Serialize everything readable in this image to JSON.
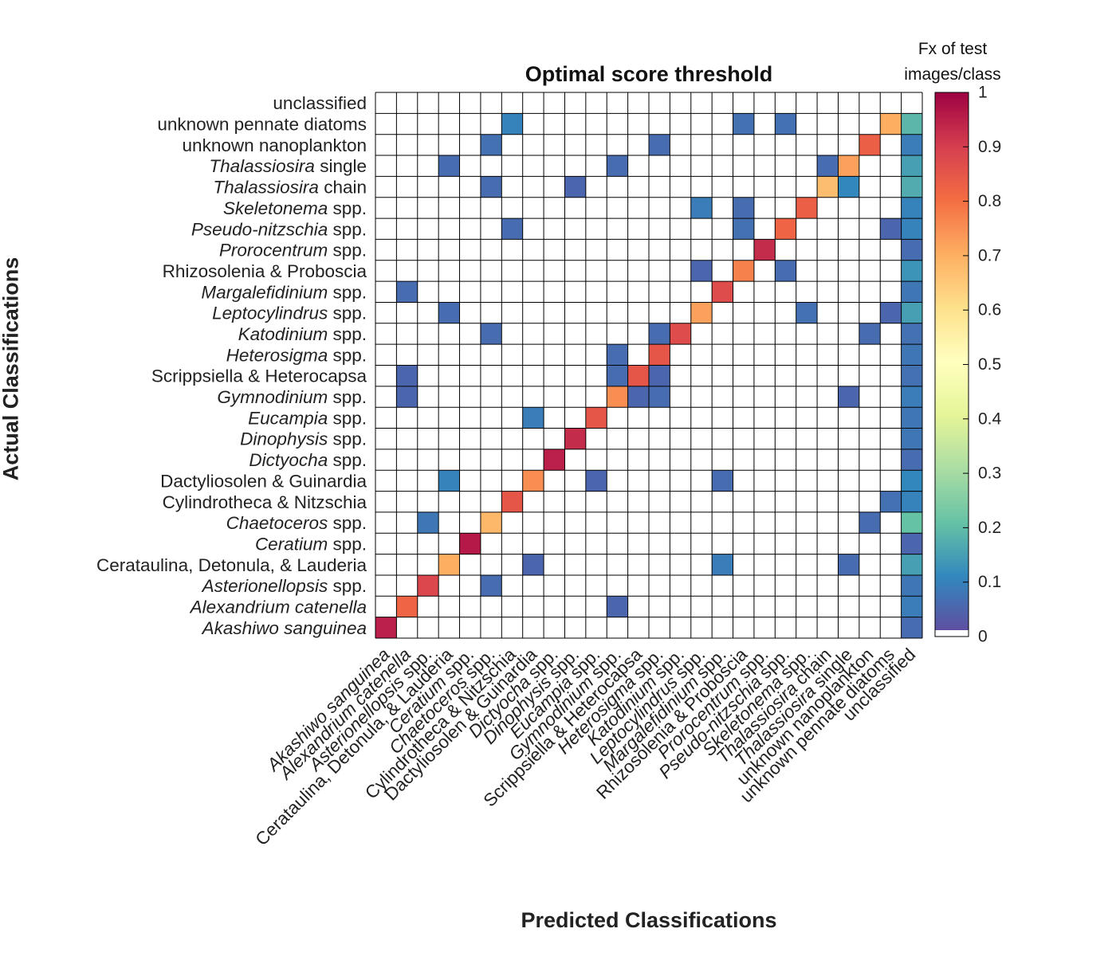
{
  "chart_data": {
    "type": "heatmap",
    "title": "Optimal score threshold",
    "xlabel": "Predicted Classifications",
    "ylabel": "Actual Classifications",
    "colorbar": {
      "title_line1": "Fx of test",
      "title_line2": "images/class",
      "ticks": [
        "0",
        "0.1",
        "0.2",
        "0.3",
        "0.4",
        "0.5",
        "0.6",
        "0.7",
        "0.8",
        "0.9",
        "1"
      ],
      "range": [
        0,
        1
      ],
      "colormap": "spectral (reversed): purple-blue-teal-green-yellow-orange-red; 0 drawn white"
    },
    "classes": [
      {
        "parts": [
          {
            "t": "Akashiwo sanguinea",
            "i": true
          }
        ]
      },
      {
        "parts": [
          {
            "t": "Alexandrium catenella",
            "i": true
          }
        ]
      },
      {
        "parts": [
          {
            "t": "Asterionellopsis",
            "i": true
          },
          {
            "t": " spp.",
            "i": false
          }
        ]
      },
      {
        "parts": [
          {
            "t": "Cerataulina, Detonula, & Lauderia",
            "i": false
          }
        ]
      },
      {
        "parts": [
          {
            "t": "Ceratium",
            "i": true
          },
          {
            "t": " spp.",
            "i": false
          }
        ]
      },
      {
        "parts": [
          {
            "t": "Chaetoceros",
            "i": true
          },
          {
            "t": " spp.",
            "i": false
          }
        ]
      },
      {
        "parts": [
          {
            "t": "Cylindrotheca & Nitzschia",
            "i": false
          }
        ]
      },
      {
        "parts": [
          {
            "t": "Dactyliosolen & Guinardia",
            "i": false
          }
        ]
      },
      {
        "parts": [
          {
            "t": "Dictyocha",
            "i": true
          },
          {
            "t": " spp.",
            "i": false
          }
        ]
      },
      {
        "parts": [
          {
            "t": "Dinophysis",
            "i": true
          },
          {
            "t": " spp.",
            "i": false
          }
        ]
      },
      {
        "parts": [
          {
            "t": "Eucampia",
            "i": true
          },
          {
            "t": " spp.",
            "i": false
          }
        ]
      },
      {
        "parts": [
          {
            "t": "Gymnodinium",
            "i": true
          },
          {
            "t": " spp.",
            "i": false
          }
        ]
      },
      {
        "parts": [
          {
            "t": "Scrippsiella & Heterocapsa",
            "i": false
          }
        ]
      },
      {
        "parts": [
          {
            "t": "Heterosigma",
            "i": true
          },
          {
            "t": " spp.",
            "i": false
          }
        ]
      },
      {
        "parts": [
          {
            "t": "Katodinium",
            "i": true
          },
          {
            "t": " spp.",
            "i": false
          }
        ]
      },
      {
        "parts": [
          {
            "t": "Leptocylindrus",
            "i": true
          },
          {
            "t": " spp.",
            "i": false
          }
        ]
      },
      {
        "parts": [
          {
            "t": "Margalefidinium",
            "i": true
          },
          {
            "t": " spp.",
            "i": false
          }
        ]
      },
      {
        "parts": [
          {
            "t": "Rhizosolenia & Proboscia",
            "i": false
          }
        ]
      },
      {
        "parts": [
          {
            "t": "Prorocentrum",
            "i": true
          },
          {
            "t": " spp.",
            "i": false
          }
        ]
      },
      {
        "parts": [
          {
            "t": "Pseudo-nitzschia",
            "i": true
          },
          {
            "t": " spp.",
            "i": false
          }
        ]
      },
      {
        "parts": [
          {
            "t": "Skeletonema",
            "i": true
          },
          {
            "t": " spp.",
            "i": false
          }
        ]
      },
      {
        "parts": [
          {
            "t": "Thalassiosira",
            "i": true
          },
          {
            "t": " chain",
            "i": false
          }
        ]
      },
      {
        "parts": [
          {
            "t": "Thalassiosira",
            "i": true
          },
          {
            "t": " single",
            "i": false
          }
        ]
      },
      {
        "parts": [
          {
            "t": "unknown nanoplankton",
            "i": false
          }
        ]
      },
      {
        "parts": [
          {
            "t": "unknown pennate diatoms",
            "i": false
          }
        ]
      },
      {
        "parts": [
          {
            "t": "unclassified",
            "i": false
          }
        ]
      }
    ],
    "rows": [
      {
        "actual": 0,
        "cells": [
          [
            0,
            0.95
          ],
          [
            25,
            0.05
          ]
        ]
      },
      {
        "actual": 1,
        "cells": [
          [
            1,
            0.82
          ],
          [
            11,
            0.04
          ],
          [
            25,
            0.08
          ]
        ]
      },
      {
        "actual": 2,
        "cells": [
          [
            2,
            0.88
          ],
          [
            5,
            0.05
          ],
          [
            25,
            0.07
          ]
        ]
      },
      {
        "actual": 3,
        "cells": [
          [
            3,
            0.7
          ],
          [
            7,
            0.04
          ],
          [
            16,
            0.08
          ],
          [
            22,
            0.05
          ],
          [
            25,
            0.14
          ]
        ]
      },
      {
        "actual": 4,
        "cells": [
          [
            4,
            0.96
          ],
          [
            25,
            0.04
          ]
        ]
      },
      {
        "actual": 5,
        "cells": [
          [
            2,
            0.07
          ],
          [
            5,
            0.68
          ],
          [
            23,
            0.05
          ],
          [
            25,
            0.2
          ]
        ]
      },
      {
        "actual": 6,
        "cells": [
          [
            6,
            0.85
          ],
          [
            24,
            0.06
          ],
          [
            25,
            0.09
          ]
        ]
      },
      {
        "actual": 7,
        "cells": [
          [
            3,
            0.09
          ],
          [
            7,
            0.75
          ],
          [
            10,
            0.04
          ],
          [
            16,
            0.05
          ],
          [
            25,
            0.1
          ]
        ]
      },
      {
        "actual": 8,
        "cells": [
          [
            8,
            0.95
          ],
          [
            25,
            0.05
          ]
        ]
      },
      {
        "actual": 9,
        "cells": [
          [
            9,
            0.93
          ],
          [
            25,
            0.07
          ]
        ]
      },
      {
        "actual": 10,
        "cells": [
          [
            7,
            0.08
          ],
          [
            10,
            0.85
          ],
          [
            25,
            0.07
          ]
        ]
      },
      {
        "actual": 11,
        "cells": [
          [
            1,
            0.04
          ],
          [
            11,
            0.75
          ],
          [
            12,
            0.04
          ],
          [
            13,
            0.05
          ],
          [
            22,
            0.04
          ],
          [
            25,
            0.08
          ]
        ]
      },
      {
        "actual": 12,
        "cells": [
          [
            1,
            0.04
          ],
          [
            11,
            0.05
          ],
          [
            12,
            0.85
          ],
          [
            13,
            0.04
          ],
          [
            25,
            0.06
          ]
        ]
      },
      {
        "actual": 13,
        "cells": [
          [
            11,
            0.05
          ],
          [
            13,
            0.85
          ],
          [
            25,
            0.07
          ]
        ]
      },
      {
        "actual": 14,
        "cells": [
          [
            5,
            0.05
          ],
          [
            13,
            0.05
          ],
          [
            14,
            0.87
          ],
          [
            23,
            0.05
          ],
          [
            25,
            0.06
          ]
        ]
      },
      {
        "actual": 15,
        "cells": [
          [
            3,
            0.05
          ],
          [
            15,
            0.72
          ],
          [
            20,
            0.06
          ],
          [
            24,
            0.04
          ],
          [
            25,
            0.14
          ]
        ]
      },
      {
        "actual": 16,
        "cells": [
          [
            1,
            0.05
          ],
          [
            16,
            0.87
          ],
          [
            25,
            0.07
          ]
        ]
      },
      {
        "actual": 17,
        "cells": [
          [
            15,
            0.04
          ],
          [
            17,
            0.77
          ],
          [
            19,
            0.05
          ],
          [
            25,
            0.12
          ]
        ]
      },
      {
        "actual": 18,
        "cells": [
          [
            18,
            0.93
          ],
          [
            25,
            0.05
          ]
        ]
      },
      {
        "actual": 19,
        "cells": [
          [
            6,
            0.05
          ],
          [
            17,
            0.06
          ],
          [
            19,
            0.82
          ],
          [
            24,
            0.04
          ],
          [
            25,
            0.09
          ]
        ]
      },
      {
        "actual": 20,
        "cells": [
          [
            15,
            0.08
          ],
          [
            17,
            0.05
          ],
          [
            20,
            0.83
          ],
          [
            25,
            0.09
          ]
        ]
      },
      {
        "actual": 21,
        "cells": [
          [
            5,
            0.05
          ],
          [
            9,
            0.04
          ],
          [
            21,
            0.67
          ],
          [
            22,
            0.1
          ],
          [
            25,
            0.16
          ]
        ]
      },
      {
        "actual": 22,
        "cells": [
          [
            3,
            0.05
          ],
          [
            11,
            0.05
          ],
          [
            21,
            0.05
          ],
          [
            22,
            0.72
          ],
          [
            25,
            0.14
          ]
        ]
      },
      {
        "actual": 23,
        "cells": [
          [
            5,
            0.06
          ],
          [
            13,
            0.05
          ],
          [
            23,
            0.83
          ],
          [
            25,
            0.08
          ]
        ]
      },
      {
        "actual": 24,
        "cells": [
          [
            6,
            0.09
          ],
          [
            17,
            0.06
          ],
          [
            19,
            0.06
          ],
          [
            24,
            0.7
          ],
          [
            25,
            0.18
          ]
        ]
      },
      {
        "actual": 25,
        "cells": []
      }
    ]
  }
}
